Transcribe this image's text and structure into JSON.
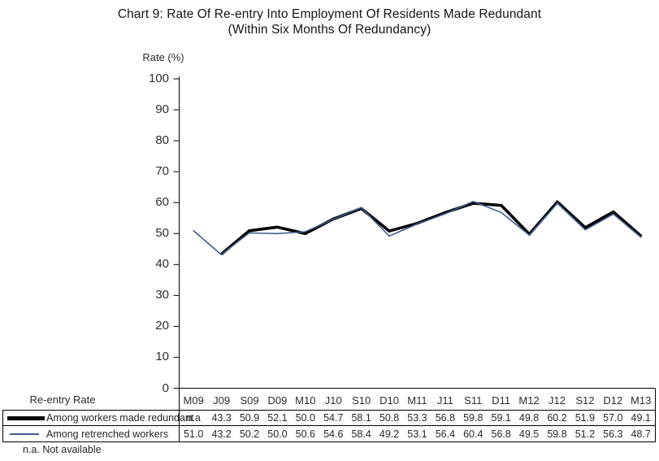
{
  "title": {
    "line1": "Chart 9: Rate Of Re-entry Into Employment Of Residents Made Redundant",
    "line2": "(Within Six Months Of Redundancy)"
  },
  "axis": {
    "y_label": "Rate (%)",
    "y_min": 0,
    "y_max": 100,
    "y_step": 10
  },
  "table": {
    "row_header_label": "Re-entry Rate",
    "columns": [
      "M09",
      "J09",
      "S09",
      "D09",
      "M10",
      "J10",
      "S10",
      "D10",
      "M11",
      "J11",
      "S11",
      "D11",
      "M12",
      "J12",
      "S12",
      "D12",
      "M13"
    ],
    "rows": [
      {
        "label": "Among workers made redundant",
        "swatch": "thick-black-line",
        "values": [
          "n.a",
          "43.3",
          "50.9",
          "52.1",
          "50.0",
          "54.7",
          "58.1",
          "50.8",
          "53.3",
          "56.8",
          "59.8",
          "59.1",
          "49.8",
          "60.2",
          "51.9",
          "57.0",
          "49.1"
        ]
      },
      {
        "label": "Among retrenched workers",
        "swatch": "thin-blue-line",
        "values": [
          "51.0",
          "43.2",
          "50.2",
          "50.0",
          "50.6",
          "54.6",
          "58.4",
          "49.2",
          "53.1",
          "56.4",
          "60.4",
          "56.8",
          "49.5",
          "59.8",
          "51.2",
          "56.3",
          "48.7"
        ]
      }
    ]
  },
  "footnote": "n.a. Not available",
  "colors": {
    "redundant_line": "#000000",
    "retrenched_line": "#3f5e8c",
    "axis": "#000000",
    "text": "#2a2a2a"
  },
  "chart_data": {
    "type": "line",
    "title": "Chart 9: Rate Of Re-entry Into Employment Of Residents Made Redundant (Within Six Months Of Redundancy)",
    "xlabel": "",
    "ylabel": "Rate (%)",
    "ylim": [
      0,
      100
    ],
    "y_tick_step": 10,
    "grid": false,
    "legend_position": "table-left",
    "categories": [
      "M09",
      "J09",
      "S09",
      "D09",
      "M10",
      "J10",
      "S10",
      "D10",
      "M11",
      "J11",
      "S11",
      "D11",
      "M12",
      "J12",
      "S12",
      "D12",
      "M13"
    ],
    "series": [
      {
        "name": "Among workers made redundant",
        "color": "#000000",
        "stroke_width": 3.6,
        "values": [
          null,
          43.3,
          50.9,
          52.1,
          50.0,
          54.7,
          58.1,
          50.8,
          53.3,
          56.8,
          59.8,
          59.1,
          49.8,
          60.2,
          51.9,
          57.0,
          49.1
        ]
      },
      {
        "name": "Among retrenched workers",
        "color": "#3f5e8c",
        "stroke_width": 1.6,
        "values": [
          51.0,
          43.2,
          50.2,
          50.0,
          50.6,
          54.6,
          58.4,
          49.2,
          53.1,
          56.4,
          60.4,
          56.8,
          49.5,
          59.8,
          51.2,
          56.3,
          48.7
        ]
      }
    ]
  }
}
